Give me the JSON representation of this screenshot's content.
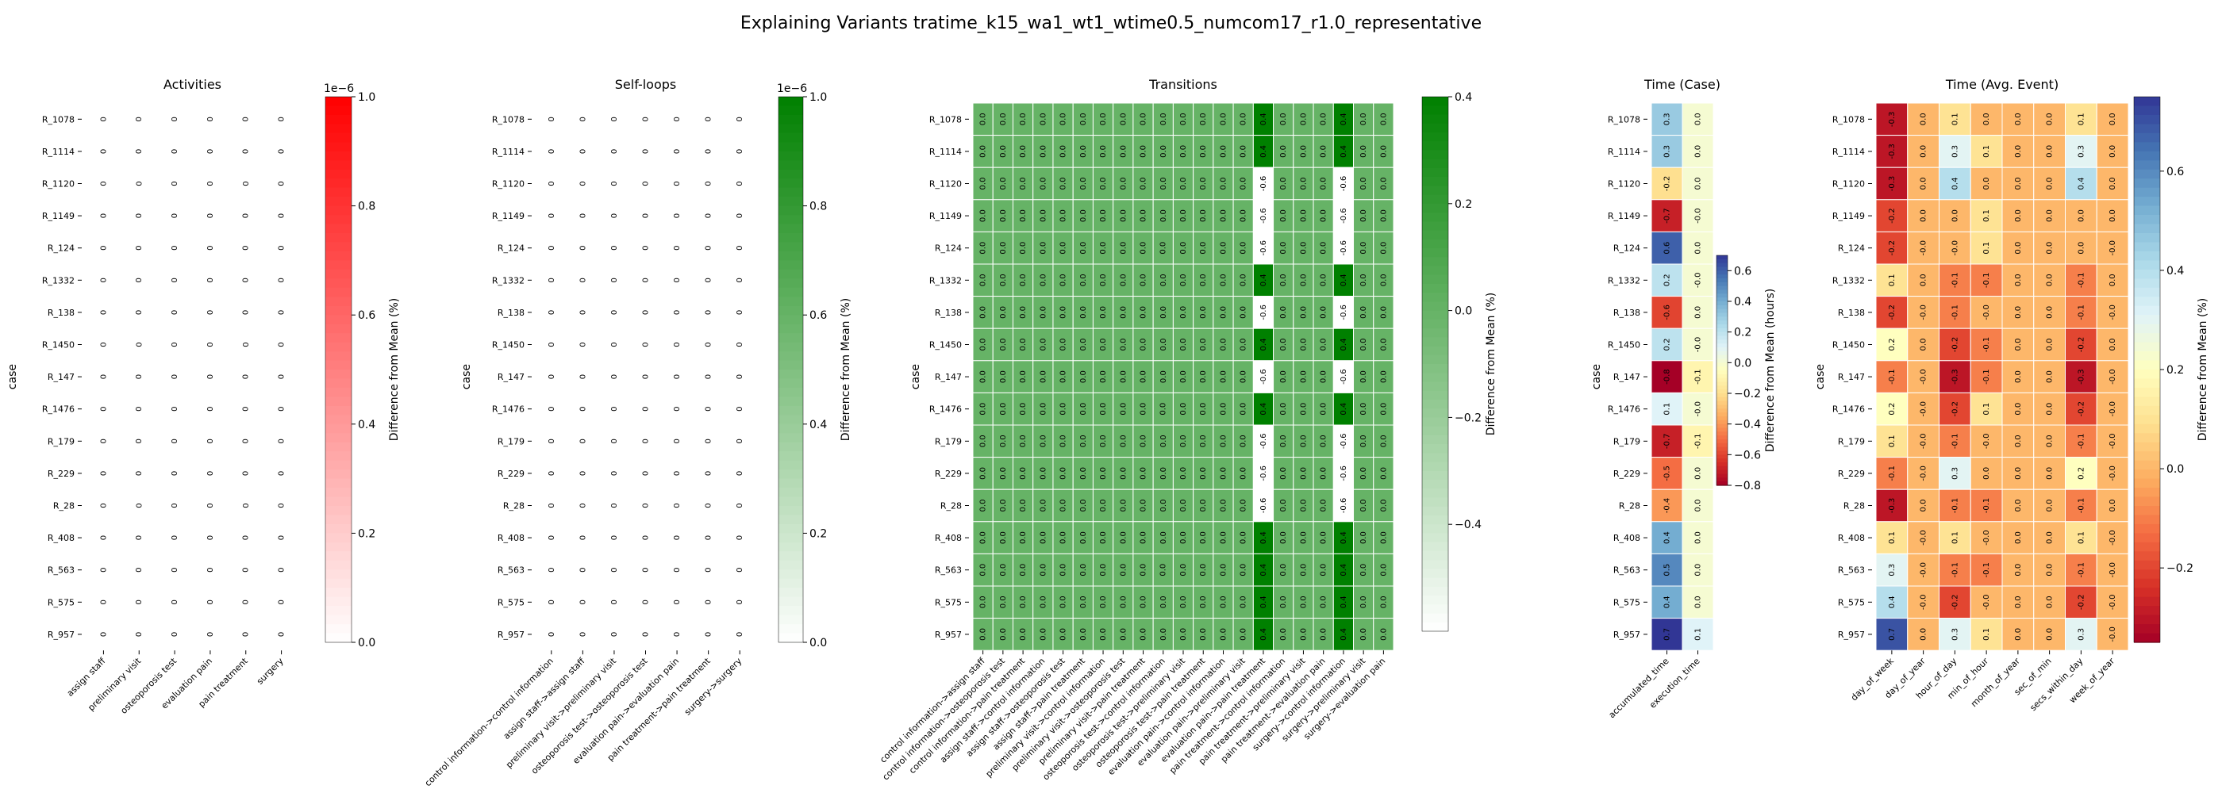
{
  "figure": {
    "title": "Explaining Variants tratime_k15_wa1_wt1_wtime0.5_numcom17_r1.0_representative"
  },
  "chart_data": {
    "cases": [
      "R_1078",
      "R_1114",
      "R_1120",
      "R_1149",
      "R_124",
      "R_1332",
      "R_138",
      "R_1450",
      "R_147",
      "R_1476",
      "R_179",
      "R_229",
      "R_28",
      "R_408",
      "R_563",
      "R_575",
      "R_957"
    ],
    "ylabel": "case",
    "panels": [
      {
        "type": "heatmap",
        "title": "Activities",
        "columns": [
          "assign staff",
          "preliminary visit",
          "osteoporosis test",
          "evaluation pain",
          "pain treatment",
          "surgery"
        ],
        "fill": "zero",
        "colormap": "white-red",
        "color_max": "#ff0000",
        "vmin": 0,
        "vmax": 1,
        "colorbar": {
          "label": "Difference from Mean (%)",
          "ticks": [
            "0.0",
            "0.2",
            "0.4",
            "0.6",
            "0.8",
            "1.0"
          ],
          "tick_values": [
            0,
            0.2,
            0.4,
            0.6,
            0.8,
            1.0
          ],
          "offset": "1e−6"
        }
      },
      {
        "type": "heatmap",
        "title": "Self-loops",
        "columns": [
          "control information->control information",
          "assign staff->assign staff",
          "preliminary visit->preliminary visit",
          "osteoporosis test->osteoporosis test",
          "evaluation pain->evaluation pain",
          "pain treatment->pain treatment",
          "surgery->surgery"
        ],
        "fill": "zero",
        "colormap": "white-green",
        "color_max": "#008000",
        "vmin": 0,
        "vmax": 1,
        "colorbar": {
          "label": "Difference from Mean (%)",
          "ticks": [
            "0.0",
            "0.2",
            "0.4",
            "0.6",
            "0.8",
            "1.0"
          ],
          "tick_values": [
            0,
            0.2,
            0.4,
            0.6,
            0.8,
            1.0
          ],
          "offset": "1e−6"
        }
      },
      {
        "type": "heatmap",
        "title": "Transitions",
        "columns": [
          "control information->assign staff",
          "control information->osteoporosis test",
          "control information->pain treatment",
          "assign staff->control information",
          "assign staff->osteoporosis test",
          "assign staff->pain treatment",
          "preliminary visit->control information",
          "preliminary visit->osteoporosis test",
          "preliminary visit->pain treatment",
          "osteoporosis test->control information",
          "osteoporosis test->preliminary visit",
          "osteoporosis test->pain treatment",
          "evaluation pain->control information",
          "evaluation pain->preliminary visit",
          "evaluation pain->pain treatment",
          "pain treatment->control information",
          "pain treatment->preliminary visit",
          "pain treatment->evaluation pain",
          "surgery->control information",
          "surgery->preliminary visit",
          "surgery->evaluation pain"
        ],
        "fill": "transitions",
        "special_columns": [
          14,
          18
        ],
        "values_special": [
          0.4,
          0.4,
          -0.6,
          -0.6,
          -0.6,
          0.4,
          -0.6,
          0.4,
          -0.6,
          0.4,
          -0.6,
          -0.6,
          -0.6,
          0.4,
          0.4,
          0.4,
          0.4
        ],
        "colormap": "white-green",
        "color_max": "#008000",
        "vmin": -0.6,
        "vmax": 0.4,
        "colorbar": {
          "label": "Difference from Mean (%)",
          "ticks": [
            "−0.4",
            "−0.2",
            "0.0",
            "0.2",
            "0.4"
          ],
          "tick_values": [
            -0.4,
            -0.2,
            0,
            0.2,
            0.4
          ]
        }
      },
      {
        "type": "heatmap",
        "title": "Time (Case)",
        "columns": [
          "accumulated_time",
          "execution_time"
        ],
        "values": [
          [
            0.3,
            0.0
          ],
          [
            0.3,
            0.0
          ],
          [
            -0.2,
            0.0
          ],
          [
            -0.7,
            -0.0
          ],
          [
            0.6,
            0.0
          ],
          [
            0.2,
            -0.0
          ],
          [
            -0.6,
            0.0
          ],
          [
            0.2,
            -0.0
          ],
          [
            -0.8,
            -0.1
          ],
          [
            0.1,
            -0.0
          ],
          [
            -0.7,
            -0.1
          ],
          [
            -0.5,
            0.0
          ],
          [
            -0.4,
            0.0
          ],
          [
            0.4,
            0.0
          ],
          [
            0.5,
            0.0
          ],
          [
            0.4,
            0.0
          ],
          [
            0.7,
            0.1
          ]
        ],
        "colormap": "RdYlBu",
        "vmin": -0.8,
        "vmax": 0.7,
        "colorbar": {
          "label": "Difference from Mean (hours)",
          "ticks": [
            "−0.8",
            "−0.6",
            "−0.4",
            "−0.2",
            "0.0",
            "0.2",
            "0.4",
            "0.6"
          ],
          "tick_values": [
            -0.8,
            -0.6,
            -0.4,
            -0.2,
            0,
            0.2,
            0.4,
            0.6
          ]
        }
      },
      {
        "type": "heatmap",
        "title": "Time (Avg. Event)",
        "columns": [
          "day_of_week",
          "day_of_year",
          "hour_of_day",
          "min_of_hour",
          "month_of_year",
          "sec_of_min",
          "secs_within_day",
          "week_of_year"
        ],
        "values": [
          [
            -0.3,
            0.0,
            0.1,
            0.0,
            0.0,
            0.0,
            0.1,
            0.0
          ],
          [
            -0.3,
            0.0,
            0.3,
            0.1,
            0.0,
            0.0,
            0.3,
            0.0
          ],
          [
            -0.3,
            0.0,
            0.4,
            0.0,
            0.0,
            0.0,
            0.4,
            0.0
          ],
          [
            -0.2,
            0.0,
            0.0,
            0.1,
            0.0,
            0.0,
            0.0,
            0.0
          ],
          [
            -0.2,
            -0.0,
            -0.0,
            0.1,
            0.0,
            0.0,
            0.0,
            -0.0
          ],
          [
            0.1,
            0.0,
            -0.1,
            -0.1,
            0.0,
            0.0,
            -0.1,
            0.0
          ],
          [
            -0.2,
            -0.0,
            -0.1,
            -0.0,
            0.0,
            0.0,
            -0.1,
            -0.0
          ],
          [
            0.2,
            0.0,
            -0.2,
            -0.1,
            0.0,
            0.0,
            -0.2,
            0.0
          ],
          [
            -0.1,
            -0.0,
            -0.3,
            -0.1,
            0.0,
            0.0,
            -0.3,
            -0.0
          ],
          [
            0.2,
            -0.0,
            -0.2,
            0.1,
            0.0,
            0.0,
            -0.2,
            -0.0
          ],
          [
            0.1,
            -0.0,
            -0.1,
            -0.0,
            0.0,
            0.0,
            -0.1,
            -0.0
          ],
          [
            -0.1,
            -0.0,
            0.3,
            0.0,
            0.0,
            0.0,
            0.2,
            -0.0
          ],
          [
            -0.3,
            0.0,
            -0.1,
            -0.1,
            0.0,
            0.0,
            -0.1,
            0.0
          ],
          [
            0.1,
            -0.0,
            0.1,
            -0.0,
            0.0,
            0.0,
            0.1,
            -0.0
          ],
          [
            0.3,
            -0.0,
            -0.1,
            -0.1,
            0.0,
            0.0,
            -0.1,
            -0.0
          ],
          [
            0.4,
            -0.0,
            -0.2,
            -0.0,
            0.0,
            0.0,
            -0.2,
            -0.0
          ],
          [
            0.7,
            0.0,
            0.3,
            0.1,
            0.0,
            0.0,
            0.3,
            -0.0
          ]
        ],
        "colormap": "RdYlBu",
        "vmin": -0.35,
        "vmax": 0.75,
        "colorbar": {
          "label": "Difference from Mean (%)",
          "ticks": [
            "−0.2",
            "0.0",
            "0.2",
            "0.4",
            "0.6"
          ],
          "tick_values": [
            -0.2,
            0,
            0.2,
            0.4,
            0.6
          ]
        }
      }
    ]
  }
}
